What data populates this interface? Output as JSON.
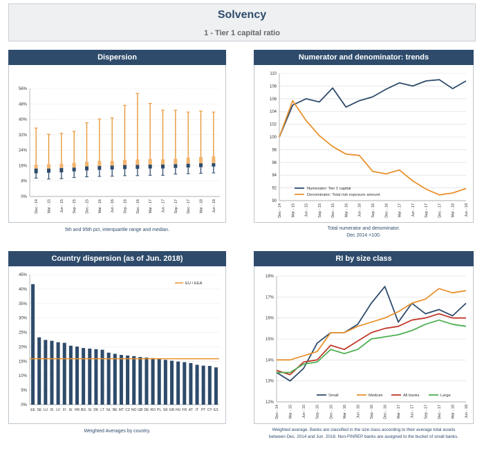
{
  "page": {
    "title": "Solvency",
    "subtitle": "1 - Tier 1 capital ratio"
  },
  "dispersion": {
    "header": "Dispersion",
    "caption": "5th and 95th pct, interquartile range and median.",
    "chart_data": {
      "type": "box",
      "categories": [
        "Dec - 14",
        "Mar - 15",
        "Jun - 15",
        "Sep - 15",
        "Dec - 15",
        "Mar - 16",
        "Jun - 16",
        "Sep - 16",
        "Dec - 16",
        "Mar - 17",
        "Jun - 17",
        "Sep - 17",
        "Dec - 17",
        "Mar - 18",
        "Jun - 18"
      ],
      "p5": [
        9.5,
        9.0,
        9.2,
        9.8,
        10.2,
        10.4,
        10.5,
        10.8,
        10.8,
        11.0,
        11.0,
        11.6,
        11.8,
        12.0,
        12.2
      ],
      "q1": [
        12.0,
        12.3,
        12.5,
        13.0,
        13.5,
        13.8,
        14.0,
        14.2,
        14.3,
        14.5,
        14.5,
        14.8,
        15.0,
        15.2,
        15.5
      ],
      "median": [
        14.5,
        14.5,
        14.8,
        15.0,
        15.6,
        15.8,
        16.0,
        16.3,
        16.4,
        16.5,
        16.6,
        16.8,
        17.0,
        17.2,
        17.3
      ],
      "q3": [
        16.5,
        16.8,
        17.0,
        17.5,
        18.0,
        18.5,
        18.5,
        19.0,
        19.2,
        19.5,
        19.3,
        19.6,
        20.2,
        20.5,
        20.8
      ],
      "p95": [
        35.5,
        32.3,
        32.8,
        33.8,
        38.2,
        40.2,
        40.8,
        47.3,
        53.5,
        48.3,
        44.8,
        44.8,
        43.8,
        44.3,
        43.8
      ],
      "y_ticks": [
        "0%",
        "8%",
        "16%",
        "24%",
        "32%",
        "40%",
        "48%",
        "56%"
      ],
      "ylim": [
        0,
        56
      ]
    }
  },
  "trends": {
    "header": "Numerator and denominator: trends",
    "caption_line1": "Total numerator and denominator.",
    "caption_line2": "Dec 2014 =100.",
    "chart_data": {
      "type": "line",
      "categories": [
        "Dec - 14",
        "Mar - 15",
        "Jun - 15",
        "Sep - 15",
        "Dec - 15",
        "Mar - 16",
        "Jun - 16",
        "Sep - 16",
        "Dec - 16",
        "Mar - 17",
        "Jun - 17",
        "Sep - 17",
        "Dec - 17",
        "Mar - 18",
        "Jun - 18"
      ],
      "series": [
        {
          "name": "Numerator: Tier 1 capital",
          "color": "#2e4b6b",
          "values": [
            100.0,
            105.0,
            106.0,
            105.5,
            107.7,
            104.7,
            105.7,
            106.3,
            107.5,
            108.5,
            108.0,
            108.8,
            109.0,
            107.6,
            108.8
          ]
        },
        {
          "name": "Denominator: Total risk exposure amount",
          "color": "#e8912c",
          "values": [
            100.0,
            105.7,
            102.6,
            100.2,
            98.5,
            97.3,
            97.1,
            94.6,
            94.2,
            94.8,
            93.1,
            91.8,
            90.9,
            91.2,
            91.9
          ]
        }
      ],
      "y_ticks": [
        "90",
        "92",
        "94",
        "96",
        "98",
        "100",
        "102",
        "104",
        "106",
        "108",
        "110"
      ],
      "ylim": [
        90,
        110
      ]
    }
  },
  "country": {
    "header": "Country dispersion (as of Jun. 2018)",
    "caption": "Weighted Averages by country.",
    "chart_data": {
      "type": "bar",
      "categories": [
        "EE",
        "SE",
        "LU",
        "IS",
        "LV",
        "FI",
        "IE",
        "HR",
        "BG",
        "SI",
        "DK",
        "LT",
        "NL",
        "BE",
        "MT",
        "CZ",
        "NO",
        "GB",
        "DE",
        "RO",
        "PL",
        "SK",
        "GR",
        "HU",
        "FR",
        "AT",
        "IT",
        "PT",
        "CY",
        "ES"
      ],
      "values": [
        41.7,
        23.3,
        22.4,
        22.1,
        21.6,
        21.4,
        20.4,
        20.1,
        19.6,
        19.4,
        19.2,
        19.0,
        18.0,
        17.6,
        17.2,
        17.0,
        16.8,
        16.5,
        16.3,
        16.1,
        16.0,
        15.5,
        15.2,
        14.9,
        14.7,
        14.4,
        13.8,
        13.5,
        13.4,
        12.9
      ],
      "reference": {
        "name": "EU / EEA",
        "value": 15.9,
        "color": "#e8912c"
      },
      "y_ticks": [
        "0%",
        "5%",
        "10%",
        "15%",
        "20%",
        "25%",
        "30%",
        "35%",
        "40%",
        "45%"
      ],
      "ylim": [
        0,
        45
      ]
    }
  },
  "size": {
    "header": "RI by size class",
    "caption_line1": "Weighted average. Banks are classified in the size class according to their average total assets",
    "caption_line2": "between Dec. 2014 and Jun. 2018. Non-FINREP banks are assigned to the bucket of small banks.",
    "chart_data": {
      "type": "line",
      "categories": [
        "Dec - 14",
        "Mar - 15",
        "Jun - 15",
        "Sep - 15",
        "Dec - 15",
        "Mar - 16",
        "Jun - 16",
        "Sep - 16",
        "Dec - 16",
        "Mar - 17",
        "Jun - 17",
        "Sep - 17",
        "Dec - 17",
        "Mar - 18",
        "Jun - 18"
      ],
      "series": [
        {
          "name": "Small",
          "color": "#2e4b6b",
          "values": [
            13.4,
            13.0,
            13.6,
            14.8,
            15.3,
            15.3,
            15.7,
            16.7,
            17.5,
            15.8,
            16.7,
            16.2,
            16.4,
            16.1,
            16.7
          ]
        },
        {
          "name": "Medium",
          "color": "#e8912c",
          "values": [
            14.0,
            14.0,
            14.2,
            14.4,
            15.3,
            15.3,
            15.6,
            15.8,
            16.0,
            16.3,
            16.7,
            16.9,
            17.4,
            17.2,
            17.3
          ]
        },
        {
          "name": "All banks",
          "color": "#c0392b",
          "values": [
            13.5,
            13.3,
            13.9,
            14.0,
            14.7,
            14.5,
            14.9,
            15.3,
            15.5,
            15.6,
            15.9,
            16.0,
            16.2,
            16.0,
            16.0
          ]
        },
        {
          "name": "Large",
          "color": "#4caf50",
          "values": [
            13.4,
            13.4,
            13.8,
            13.9,
            14.5,
            14.3,
            14.5,
            15.0,
            15.1,
            15.2,
            15.4,
            15.7,
            15.9,
            15.7,
            15.6
          ]
        }
      ],
      "y_ticks": [
        "12%",
        "13%",
        "14%",
        "15%",
        "16%",
        "17%",
        "18%"
      ],
      "ylim": [
        12,
        18
      ]
    }
  }
}
